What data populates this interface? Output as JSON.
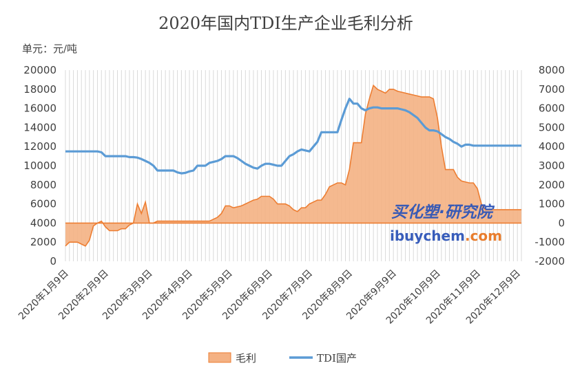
{
  "chart_data": {
    "type": "line+area",
    "title": "2020年国内TDI生产企业毛利分析",
    "unit_label": "单元：元/吨",
    "left_axis": {
      "min": 0,
      "max": 20000,
      "step": 2000,
      "ticks": [
        "0",
        "2000",
        "4000",
        "6000",
        "8000",
        "10000",
        "12000",
        "14000",
        "16000",
        "18000",
        "20000"
      ]
    },
    "right_axis": {
      "min": -2000,
      "max": 8000,
      "step": 1000,
      "ticks": [
        "-2000",
        "-1000",
        "0",
        "1000",
        "2000",
        "3000",
        "4000",
        "5000",
        "6000",
        "7000",
        "8000"
      ]
    },
    "x_labels": [
      "2020年1月9日",
      "2020年2月9日",
      "2020年3月9日",
      "2020年4月9日",
      "2020年5月9日",
      "2020年6月9日",
      "2020年7月9日",
      "2020年8月9日",
      "2020年9月9日",
      "2020年10月9日",
      "2020年11月9日",
      "2020年12月9日"
    ],
    "x_label_index": [
      0,
      10,
      21,
      31,
      41,
      51,
      61,
      71,
      82,
      93,
      103,
      113
    ],
    "grid": "vertical",
    "legend_position": "bottom",
    "series": [
      {
        "name": "毛利",
        "axis": "right",
        "type": "area",
        "color": "#ed7d31",
        "fill": "#f4b183",
        "values": [
          -1200,
          -1000,
          -1000,
          -1000,
          -1100,
          -1200,
          -900,
          -150,
          0,
          100,
          -200,
          -400,
          -400,
          -400,
          -300,
          -300,
          -100,
          0,
          1000,
          500,
          1100,
          0,
          0,
          100,
          100,
          100,
          100,
          100,
          100,
          100,
          100,
          100,
          100,
          100,
          100,
          100,
          100,
          200,
          300,
          500,
          900,
          900,
          800,
          850,
          900,
          1000,
          1100,
          1200,
          1250,
          1400,
          1400,
          1400,
          1250,
          1000,
          1000,
          1000,
          900,
          700,
          600,
          800,
          800,
          1000,
          1100,
          1200,
          1200,
          1500,
          1900,
          2000,
          2100,
          2100,
          2000,
          2800,
          4200,
          4200,
          4200,
          5700,
          6500,
          7200,
          7000,
          6900,
          6800,
          7000,
          7000,
          6900,
          6850,
          6800,
          6750,
          6700,
          6650,
          6600,
          6600,
          6600,
          6500,
          5500,
          4000,
          2800,
          2800,
          2800,
          2400,
          2200,
          2150,
          2100,
          2100,
          1800,
          1000,
          700,
          700,
          700,
          700,
          700,
          700,
          700,
          700,
          700,
          700
        ],
        "display_x": [
          0,
          1,
          2,
          3,
          4,
          5,
          6,
          7,
          8,
          9,
          10,
          11,
          12,
          13,
          14,
          15,
          16,
          17,
          18,
          19,
          20,
          21,
          22,
          23,
          24,
          25,
          26,
          27,
          28,
          29,
          30,
          31,
          32,
          33,
          34,
          35,
          36,
          37,
          38,
          39,
          40,
          41,
          42,
          43,
          44,
          45,
          46,
          47,
          48,
          49,
          50,
          51,
          52,
          53,
          54,
          55,
          56,
          57,
          58,
          59,
          60,
          61,
          62,
          63,
          64,
          65,
          66,
          67,
          68,
          69,
          70,
          71,
          72,
          73,
          74,
          75,
          76,
          77,
          78,
          79,
          80,
          81,
          82,
          83,
          84,
          85,
          86,
          87,
          88,
          89,
          90,
          91,
          92,
          93,
          94,
          95,
          96,
          97,
          98,
          99,
          100,
          101,
          102,
          103,
          104,
          105,
          106,
          107,
          108,
          109,
          110,
          111,
          112,
          113,
          114
        ]
      },
      {
        "name": "TDI国产",
        "axis": "left",
        "type": "line",
        "color": "#5b9bd5",
        "values": [
          11500,
          11500,
          11500,
          11500,
          11500,
          11500,
          11500,
          11500,
          11500,
          11400,
          11000,
          11000,
          11000,
          11000,
          11000,
          11000,
          10900,
          10900,
          10850,
          10700,
          10500,
          10300,
          10000,
          9500,
          9500,
          9500,
          9500,
          9500,
          9300,
          9200,
          9250,
          9400,
          9500,
          10000,
          10000,
          10000,
          10300,
          10400,
          10500,
          10700,
          11000,
          11000,
          11000,
          10800,
          10500,
          10200,
          10000,
          9800,
          9700,
          10000,
          10200,
          10200,
          10100,
          10000,
          10000,
          10500,
          11000,
          11200,
          11500,
          11700,
          11600,
          11500,
          12000,
          12500,
          13500,
          13500,
          13500,
          13500,
          13500,
          14800,
          16000,
          17000,
          16500,
          16500,
          16000,
          15800,
          16000,
          16100,
          16100,
          16000,
          16000,
          16000,
          16000,
          16000,
          15900,
          15800,
          15600,
          15300,
          15000,
          14500,
          14000,
          13700,
          13700,
          13600,
          13300,
          13000,
          12800,
          12500,
          12300,
          12000,
          12200,
          12200,
          12100,
          12100,
          12100,
          12100,
          12100,
          12100,
          12100,
          12100,
          12100,
          12100,
          12100,
          12100,
          12100
        ]
      }
    ]
  },
  "legend": {
    "items": [
      {
        "label": "毛利"
      },
      {
        "label": "TDI国产"
      }
    ]
  },
  "watermark": {
    "brand_cn": "买化塑·研究院",
    "brand_en_left": "ibuychem",
    "brand_en_right": ".com"
  }
}
